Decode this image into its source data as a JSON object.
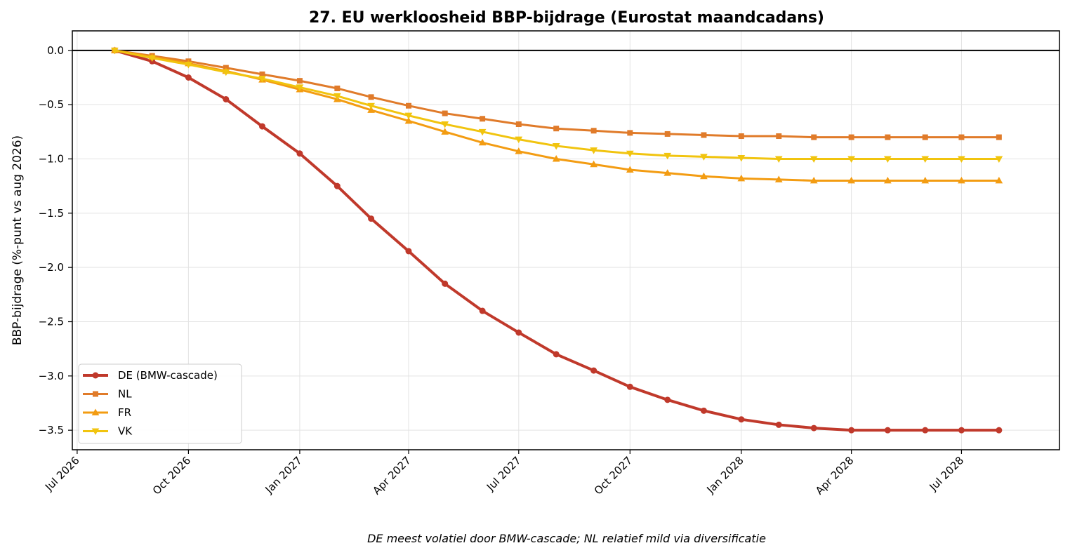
{
  "chart_data": {
    "type": "line",
    "title": "27. EU werkloosheid BBP-bijdrage (Eurostat maandcadans)",
    "xlabel": "",
    "ylabel": "BBP-bijdrage (%-punt vs aug 2026)",
    "caption": "DE meest volatiel door BMW-cascade; NL relatief mild via diversificatie",
    "x_ticks": [
      "Jul 2026",
      "Oct 2026",
      "Jan 2027",
      "Apr 2027",
      "Jul 2027",
      "Oct 2027",
      "Jan 2028",
      "Apr 2028",
      "Jul 2028"
    ],
    "y_ticks": [
      "0.0",
      "−0.5",
      "−1.0",
      "−1.5",
      "−2.0",
      "−2.5",
      "−3.0",
      "−3.5"
    ],
    "ylim": [
      -3.68,
      0.18
    ],
    "xlim": [
      "2026-06-27",
      "2028-09-20"
    ],
    "grid": true,
    "legend_position": "lower-left",
    "reference_line_y": 0,
    "x": [
      "2026-08-01",
      "2026-09-01",
      "2026-10-01",
      "2026-11-01",
      "2026-12-01",
      "2027-01-01",
      "2027-02-01",
      "2027-03-01",
      "2027-04-01",
      "2027-05-01",
      "2027-06-01",
      "2027-07-01",
      "2027-08-01",
      "2027-09-01",
      "2027-10-01",
      "2027-11-01",
      "2027-12-01",
      "2028-01-01",
      "2028-02-01",
      "2028-03-01",
      "2028-04-01",
      "2028-05-01",
      "2028-06-01",
      "2028-07-01",
      "2028-08-01"
    ],
    "series": [
      {
        "name": "DE (BMW-cascade)",
        "color": "#c0392b",
        "marker": "circle",
        "line_width": 4,
        "values": [
          0,
          -0.1,
          -0.25,
          -0.45,
          -0.7,
          -0.95,
          -1.25,
          -1.55,
          -1.85,
          -2.15,
          -2.4,
          -2.6,
          -2.8,
          -2.95,
          -3.1,
          -3.22,
          -3.32,
          -3.4,
          -3.45,
          -3.48,
          -3.5,
          -3.5,
          -3.5,
          -3.5,
          -3.5
        ]
      },
      {
        "name": "NL",
        "color": "#e07b2a",
        "marker": "square",
        "line_width": 3,
        "values": [
          0,
          -0.05,
          -0.1,
          -0.16,
          -0.22,
          -0.28,
          -0.35,
          -0.43,
          -0.51,
          -0.58,
          -0.63,
          -0.68,
          -0.72,
          -0.74,
          -0.76,
          -0.77,
          -0.78,
          -0.79,
          -0.79,
          -0.8,
          -0.8,
          -0.8,
          -0.8,
          -0.8,
          -0.8
        ]
      },
      {
        "name": "FR",
        "color": "#f39c12",
        "marker": "triangle-up",
        "line_width": 3,
        "values": [
          0,
          -0.06,
          -0.12,
          -0.19,
          -0.27,
          -0.36,
          -0.45,
          -0.55,
          -0.65,
          -0.75,
          -0.85,
          -0.93,
          -1.0,
          -1.05,
          -1.1,
          -1.13,
          -1.16,
          -1.18,
          -1.19,
          -1.2,
          -1.2,
          -1.2,
          -1.2,
          -1.2,
          -1.2
        ]
      },
      {
        "name": "VK",
        "color": "#f1c40f",
        "marker": "triangle-down",
        "line_width": 3,
        "values": [
          0,
          -0.07,
          -0.13,
          -0.2,
          -0.26,
          -0.34,
          -0.42,
          -0.51,
          -0.6,
          -0.68,
          -0.75,
          -0.82,
          -0.88,
          -0.92,
          -0.95,
          -0.97,
          -0.98,
          -0.99,
          -1.0,
          -1.0,
          -1.0,
          -1.0,
          -1.0,
          -1.0,
          -1.0
        ]
      }
    ]
  }
}
